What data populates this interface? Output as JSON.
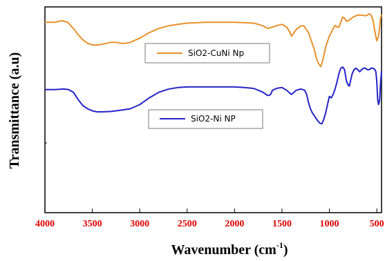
{
  "chart_data": {
    "type": "line",
    "title": "",
    "xlabel_main": "Wavenumber (cm",
    "xlabel_sup": "-1",
    "xlabel_close": ")",
    "ylabel": "Transmittance (a.u)",
    "xlim": [
      4000,
      450
    ],
    "ylim": [
      0,
      100
    ],
    "x_reversed": true,
    "y_ticks_labeled": false,
    "grid": false,
    "legend_placement": "inline, right of each curve",
    "x_ticks": [
      {
        "value": 4000,
        "label": "4000"
      },
      {
        "value": 3500,
        "label": "3500"
      },
      {
        "value": 3000,
        "label": "3000"
      },
      {
        "value": 2500,
        "label": "2500"
      },
      {
        "value": 2000,
        "label": "2000"
      },
      {
        "value": 1500,
        "label": "1500"
      },
      {
        "value": 1000,
        "label": "1000"
      },
      {
        "value": 500,
        "label": "500"
      }
    ],
    "series": [
      {
        "name": "SiO2-CuNi Np",
        "color": "#e8902a",
        "x": [
          4000,
          3900,
          3820,
          3760,
          3700,
          3650,
          3600,
          3550,
          3500,
          3450,
          3400,
          3350,
          3300,
          3250,
          3200,
          3150,
          3100,
          3000,
          2900,
          2800,
          2700,
          2600,
          2500,
          2400,
          2300,
          2200,
          2100,
          2000,
          1900,
          1800,
          1750,
          1700,
          1650,
          1600,
          1550,
          1500,
          1450,
          1420,
          1400,
          1380,
          1350,
          1300,
          1270,
          1250,
          1220,
          1200,
          1180,
          1160,
          1140,
          1120,
          1100,
          1090,
          1080,
          1060,
          1040,
          1000,
          960,
          940,
          920,
          900,
          880,
          860,
          840,
          820,
          800,
          780,
          760,
          740,
          700,
          660,
          620,
          600,
          580,
          560,
          540,
          520,
          500,
          480,
          470,
          460,
          450
        ],
        "y": [
          92.5,
          92.5,
          93.3,
          92.5,
          89.5,
          86.5,
          84.0,
          82.3,
          81.5,
          81.5,
          81.8,
          82.3,
          82.8,
          82.8,
          82.3,
          82.3,
          82.8,
          84.8,
          87.5,
          89.5,
          90.8,
          91.5,
          92.1,
          92.3,
          92.5,
          92.5,
          92.5,
          92.5,
          92.3,
          92.1,
          91.5,
          90.8,
          89.5,
          90.2,
          91.0,
          91.5,
          90.2,
          88.0,
          85.8,
          87.0,
          89.0,
          90.8,
          90.8,
          89.5,
          87.5,
          84.8,
          82.0,
          79.5,
          75.5,
          73.0,
          71.5,
          71.0,
          72.5,
          76.0,
          80.5,
          85.8,
          89.5,
          91.0,
          90.2,
          90.2,
          92.5,
          95.0,
          94.5,
          93.0,
          93.3,
          94.0,
          94.7,
          95.3,
          96.0,
          96.0,
          95.7,
          96.0,
          96.7,
          96.0,
          93.5,
          88.0,
          83.5,
          86.0,
          90.2,
          94.5,
          96.3
        ]
      },
      {
        "name": "SiO2-Ni NP",
        "color": "#2323c8",
        "x": [
          4000,
          3900,
          3800,
          3750,
          3700,
          3650,
          3600,
          3550,
          3500,
          3450,
          3400,
          3300,
          3200,
          3100,
          3000,
          2900,
          2800,
          2700,
          2600,
          2500,
          2400,
          2200,
          2000,
          1900,
          1800,
          1750,
          1700,
          1660,
          1640,
          1620,
          1600,
          1550,
          1500,
          1450,
          1420,
          1400,
          1380,
          1350,
          1300,
          1260,
          1240,
          1220,
          1200,
          1180,
          1160,
          1140,
          1120,
          1100,
          1080,
          1060,
          1040,
          1020,
          1000,
          980,
          960,
          940,
          920,
          900,
          880,
          860,
          840,
          820,
          800,
          790,
          780,
          760,
          740,
          720,
          700,
          680,
          660,
          640,
          620,
          600,
          580,
          560,
          540,
          520,
          510,
          500,
          490,
          480,
          470,
          460,
          450
        ],
        "y": [
          59.8,
          59.8,
          60.1,
          59.8,
          58.5,
          55.0,
          52.0,
          50.5,
          49.5,
          49.0,
          49.0,
          49.2,
          49.8,
          50.5,
          52.5,
          55.8,
          58.5,
          60.0,
          60.8,
          61.1,
          61.1,
          61.1,
          61.1,
          60.8,
          60.4,
          59.5,
          58.5,
          57.2,
          56.9,
          57.5,
          59.5,
          60.5,
          60.8,
          59.5,
          58.2,
          57.5,
          58.2,
          59.5,
          60.1,
          59.5,
          57.5,
          53.5,
          50.5,
          48.5,
          47.2,
          45.8,
          44.5,
          43.5,
          43.2,
          45.2,
          48.5,
          52.5,
          56.5,
          55.8,
          57.5,
          60.1,
          63.5,
          67.5,
          70.2,
          70.8,
          69.5,
          64.0,
          61.8,
          61.5,
          63.5,
          67.5,
          69.5,
          70.2,
          69.5,
          68.5,
          69.5,
          70.2,
          70.2,
          69.5,
          69.5,
          70.2,
          70.2,
          69.5,
          68.5,
          64.0,
          54.5,
          52.5,
          55.0,
          63.0,
          68.8
        ]
      }
    ]
  }
}
